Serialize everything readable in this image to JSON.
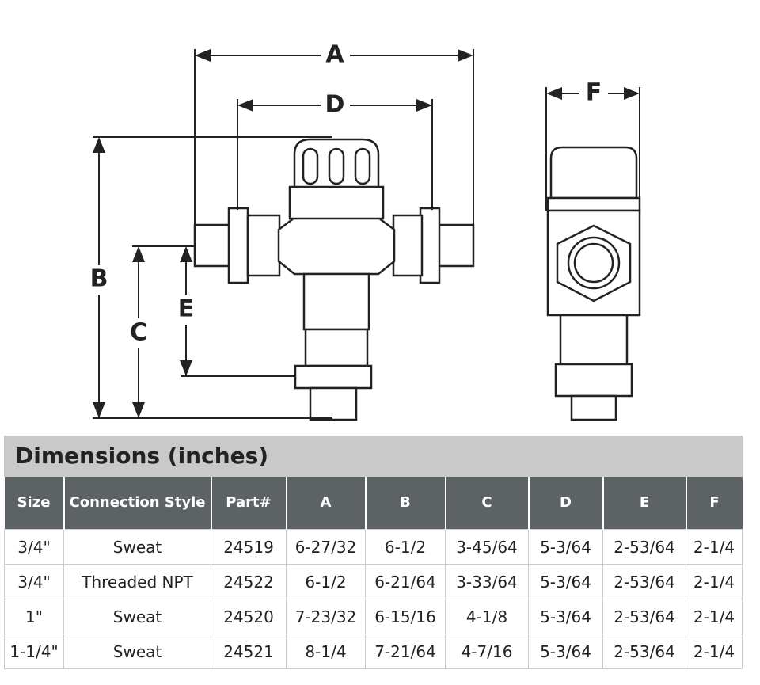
{
  "drawing": {
    "labels": [
      "A",
      "D",
      "F",
      "B",
      "C",
      "E"
    ]
  },
  "table": {
    "title": "Dimensions (inches)",
    "headers": [
      "Size",
      "Connection Style",
      "Part#",
      "A",
      "B",
      "C",
      "D",
      "E",
      "F"
    ],
    "rows": [
      [
        "3/4\"",
        "Sweat",
        "24519",
        "6-27/32",
        "6-1/2",
        "3-45/64",
        "5-3/64",
        "2-53/64",
        "2-1/4"
      ],
      [
        "3/4\"",
        "Threaded NPT",
        "24522",
        "6-1/2",
        "6-21/64",
        "3-33/64",
        "5-3/64",
        "2-53/64",
        "2-1/4"
      ],
      [
        "1\"",
        "Sweat",
        "24520",
        "7-23/32",
        "6-15/16",
        "4-1/8",
        "5-3/64",
        "2-53/64",
        "2-1/4"
      ],
      [
        "1-1/4\"",
        "Sweat",
        "24521",
        "8-1/4",
        "7-21/64",
        "4-7/16",
        "5-3/64",
        "2-53/64",
        "2-1/4"
      ]
    ]
  }
}
